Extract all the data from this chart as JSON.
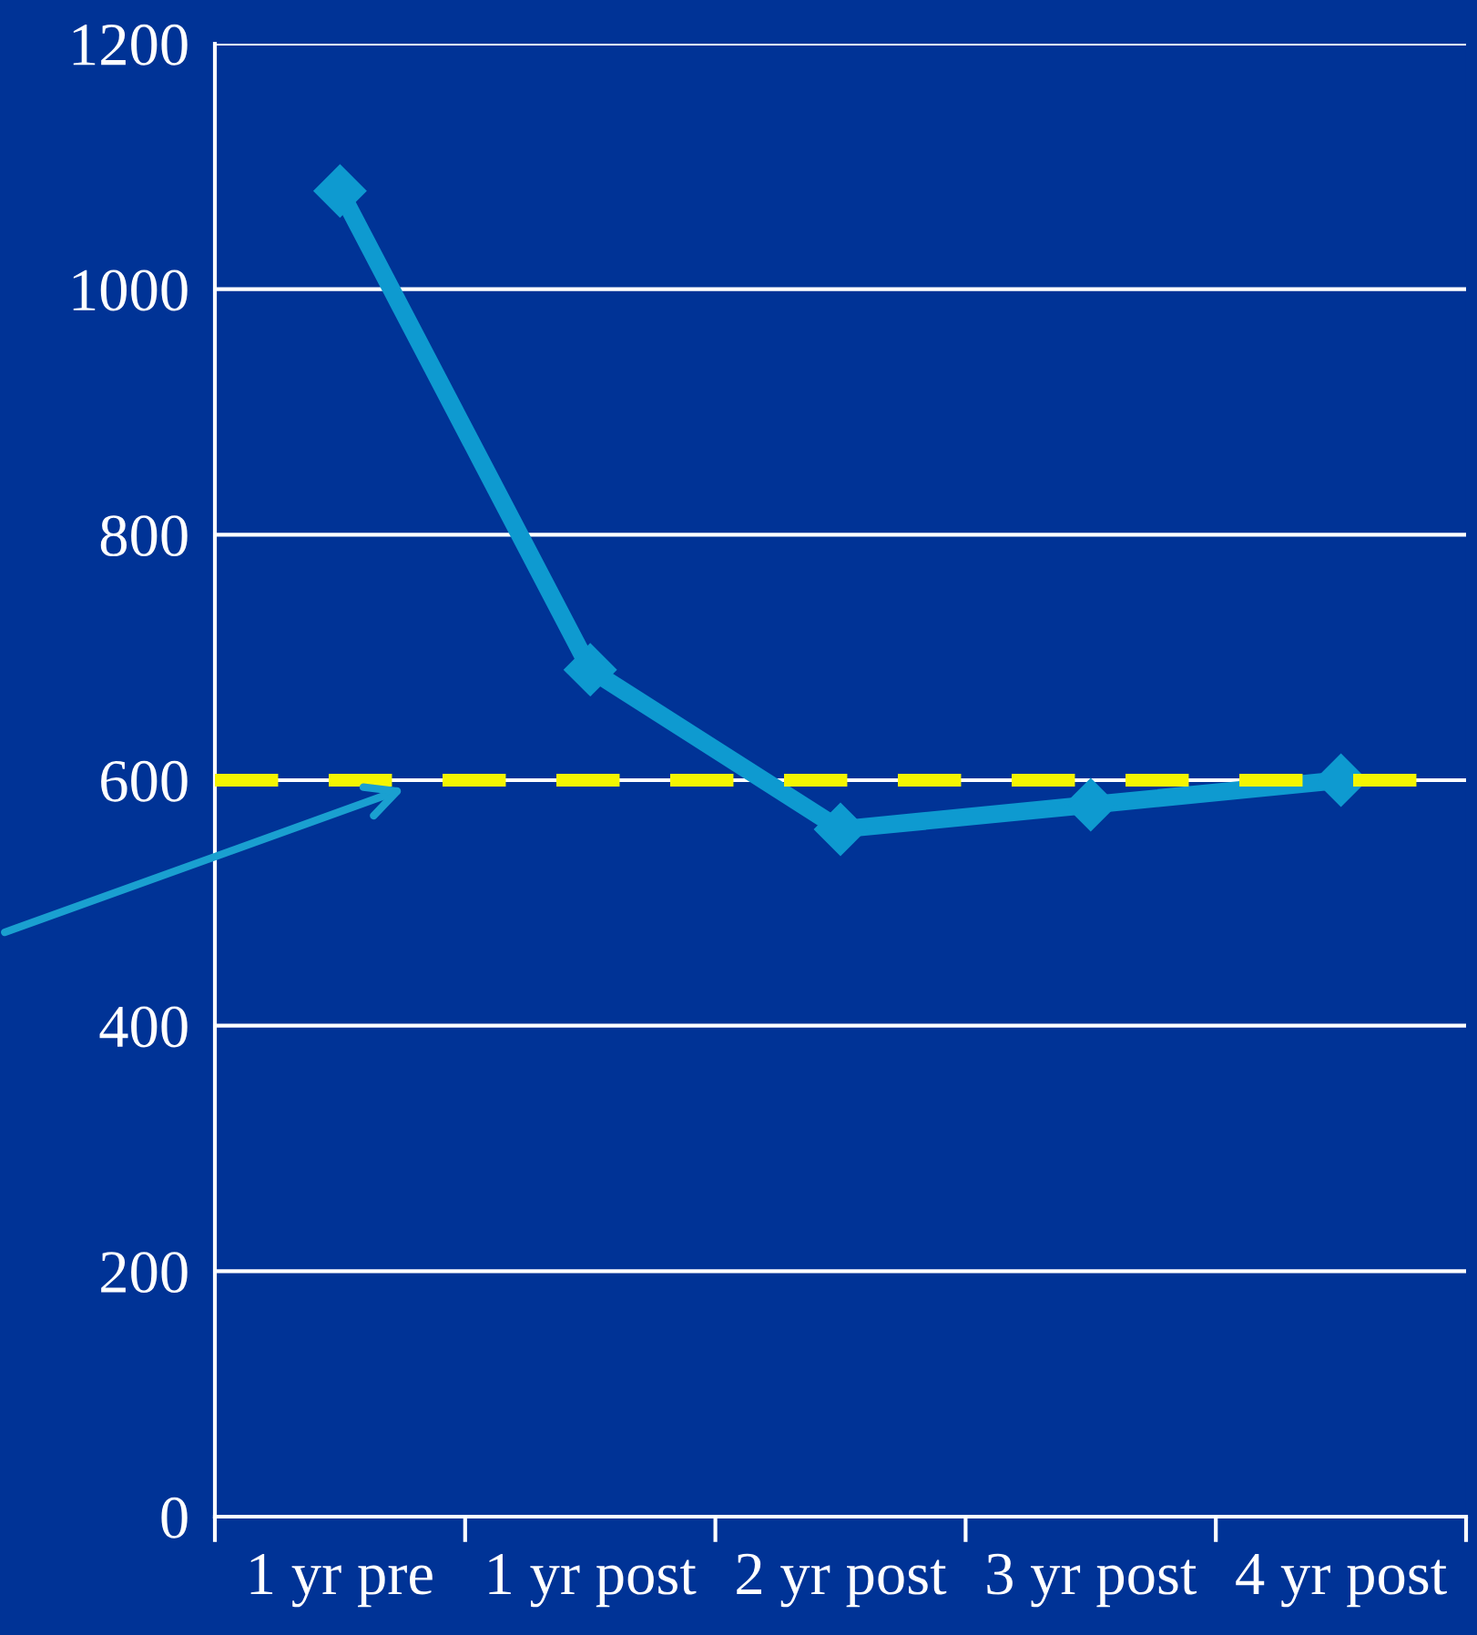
{
  "chart_data": {
    "type": "line",
    "categories": [
      "1 yr pre",
      "1 yr post",
      "2 yr post",
      "3 yr post",
      "4 yr post"
    ],
    "series": [
      {
        "color": "#0e9ad0",
        "values": [
          1080,
          690,
          560,
          580,
          600
        ]
      }
    ],
    "ylim": [
      0,
      1200
    ],
    "yticks": [
      0,
      200,
      400,
      600,
      800,
      1000,
      1200
    ],
    "grid": "y",
    "marker": "diamond",
    "line_style": "solid",
    "legend": false,
    "ref_lines": [
      {
        "axis": "y",
        "value": 600,
        "color": "#f5f500",
        "line_style": "dashed"
      }
    ]
  }
}
